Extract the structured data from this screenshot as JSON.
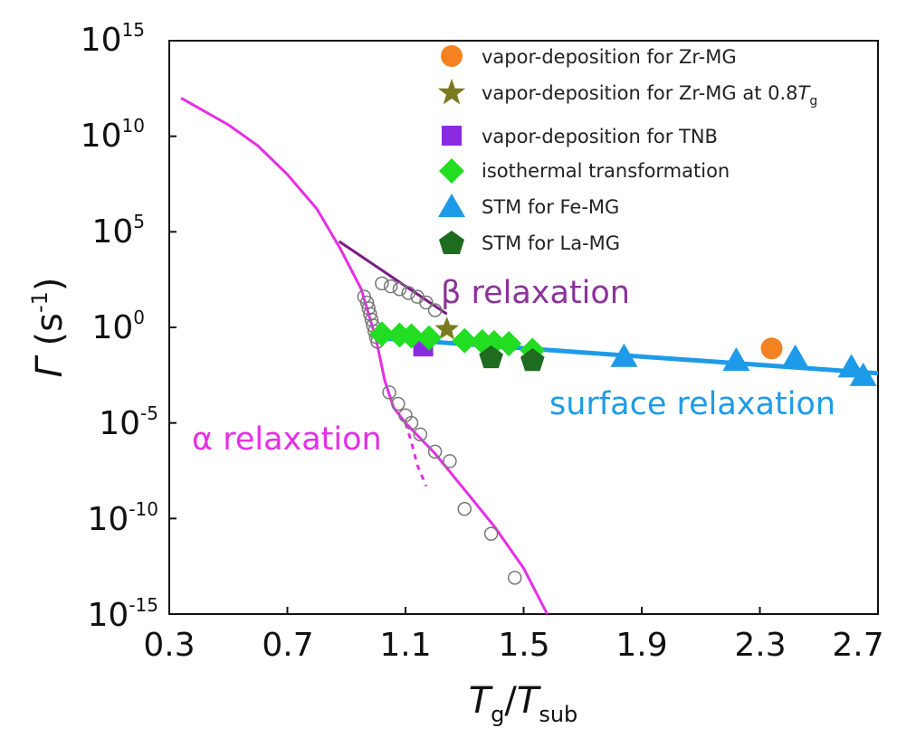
{
  "chart_data": {
    "type": "scatter",
    "xlabel": {
      "main": "T",
      "sub1": "g",
      "slash": "/",
      "main2": "T",
      "sub2": "sub"
    },
    "ylabel": {
      "main": "Γ",
      "unit_open": " (s",
      "unit_exp": "-1",
      "unit_close": ")"
    },
    "xlim": [
      0.3,
      2.7
    ],
    "ylim_log10": [
      -15,
      15
    ],
    "yscale": "log",
    "xticks": [
      "0.3",
      "0.7",
      "1.1",
      "1.5",
      "1.9",
      "2.3",
      "2.7"
    ],
    "yticks": [
      {
        "base": "10",
        "exp": "15"
      },
      {
        "base": "10",
        "exp": "10"
      },
      {
        "base": "10",
        "exp": "5"
      },
      {
        "base": "10",
        "exp": "0"
      },
      {
        "base": "10",
        "exp": "-5"
      },
      {
        "base": "10",
        "exp": "-10"
      },
      {
        "base": "10",
        "exp": "-15"
      }
    ],
    "legend_position": "top-right",
    "series": [
      {
        "name": "vapor-deposition for Zr-MG",
        "marker": "circle",
        "color": "#f58220",
        "points": [
          [
            2.34,
            -1.1
          ]
        ]
      },
      {
        "name": "vapor-deposition for Zr-MG at 0.8",
        "name_suffix_italic": "T",
        "name_suffix_sub": "g",
        "marker": "star",
        "color": "#7a7a20",
        "points": [
          [
            1.24,
            -0.1
          ]
        ]
      },
      {
        "name": "vapor-deposition for TNB",
        "marker": "square",
        "color": "#8a2be2",
        "points": [
          [
            1.16,
            -1.0
          ]
        ]
      },
      {
        "name": "isothermal transformation",
        "marker": "diamond",
        "color": "#22dd22",
        "points": [
          [
            1.02,
            -0.35
          ],
          [
            1.08,
            -0.4
          ],
          [
            1.12,
            -0.45
          ],
          [
            1.18,
            -0.55
          ],
          [
            1.3,
            -0.7
          ],
          [
            1.36,
            -0.75
          ],
          [
            1.4,
            -0.8
          ],
          [
            1.45,
            -0.85
          ],
          [
            1.53,
            -1.2
          ]
        ]
      },
      {
        "name": "STM for Fe-MG",
        "marker": "triangle",
        "color": "#1e9be8",
        "points": [
          [
            1.84,
            -1.55
          ],
          [
            2.22,
            -1.75
          ],
          [
            2.42,
            -1.6
          ],
          [
            2.61,
            -2.1
          ],
          [
            2.65,
            -2.55
          ]
        ]
      },
      {
        "name": "STM for La-MG",
        "marker": "pentagon",
        "color": "#1f6b1f",
        "points": [
          [
            1.39,
            -1.6
          ],
          [
            1.53,
            -1.75
          ]
        ]
      }
    ],
    "open_circles": [
      [
        0.96,
        1.6
      ],
      [
        0.97,
        1.3
      ],
      [
        0.975,
        1.0
      ],
      [
        0.98,
        0.7
      ],
      [
        0.985,
        0.4
      ],
      [
        0.99,
        0.1
      ],
      [
        0.995,
        -0.2
      ],
      [
        1.0,
        -0.5
      ],
      [
        1.005,
        -0.75
      ],
      [
        1.02,
        2.3
      ],
      [
        1.05,
        2.15
      ],
      [
        1.08,
        2.0
      ],
      [
        1.11,
        1.8
      ],
      [
        1.14,
        1.6
      ],
      [
        1.17,
        1.3
      ],
      [
        1.2,
        0.9
      ],
      [
        1.045,
        -3.4
      ],
      [
        1.075,
        -4.0
      ],
      [
        1.1,
        -4.6
      ],
      [
        1.12,
        -5.0
      ],
      [
        1.15,
        -5.6
      ],
      [
        1.2,
        -6.5
      ],
      [
        1.25,
        -7.0
      ],
      [
        1.3,
        -9.5
      ],
      [
        1.39,
        -10.8
      ],
      [
        1.47,
        -13.1
      ]
    ],
    "curves": [
      {
        "id": "alpha",
        "color": "#e62ee6",
        "points": [
          [
            0.34,
            12.0
          ],
          [
            0.5,
            10.6
          ],
          [
            0.6,
            9.5
          ],
          [
            0.7,
            8.0
          ],
          [
            0.8,
            6.2
          ],
          [
            0.88,
            4.1
          ],
          [
            0.95,
            2.0
          ],
          [
            1.0,
            -0.6
          ],
          [
            1.03,
            -2.8
          ],
          [
            1.06,
            -4.2
          ],
          [
            1.1,
            -5.0
          ],
          [
            1.2,
            -6.6
          ],
          [
            1.3,
            -8.5
          ],
          [
            1.4,
            -10.4
          ],
          [
            1.5,
            -12.6
          ],
          [
            1.58,
            -15.0
          ]
        ]
      },
      {
        "id": "alpha-dashed",
        "color": "#e62ee6",
        "dashed": true,
        "points": [
          [
            1.1,
            -5.0
          ],
          [
            1.12,
            -6.0
          ],
          [
            1.14,
            -7.2
          ],
          [
            1.17,
            -8.3
          ]
        ]
      },
      {
        "id": "beta",
        "color": "#7b1a86",
        "points": [
          [
            0.875,
            4.5
          ],
          [
            1.24,
            0.7
          ]
        ]
      },
      {
        "id": "surface",
        "color": "#1e9be8",
        "points": [
          [
            1.0,
            -0.55
          ],
          [
            2.7,
            -2.4
          ]
        ]
      }
    ],
    "annotations": [
      {
        "text": "β relaxation",
        "color": "#8b3399"
      },
      {
        "text": "α relaxation",
        "color": "#e62ee6"
      },
      {
        "text": "surface relaxation",
        "color": "#1e9be8"
      }
    ]
  }
}
